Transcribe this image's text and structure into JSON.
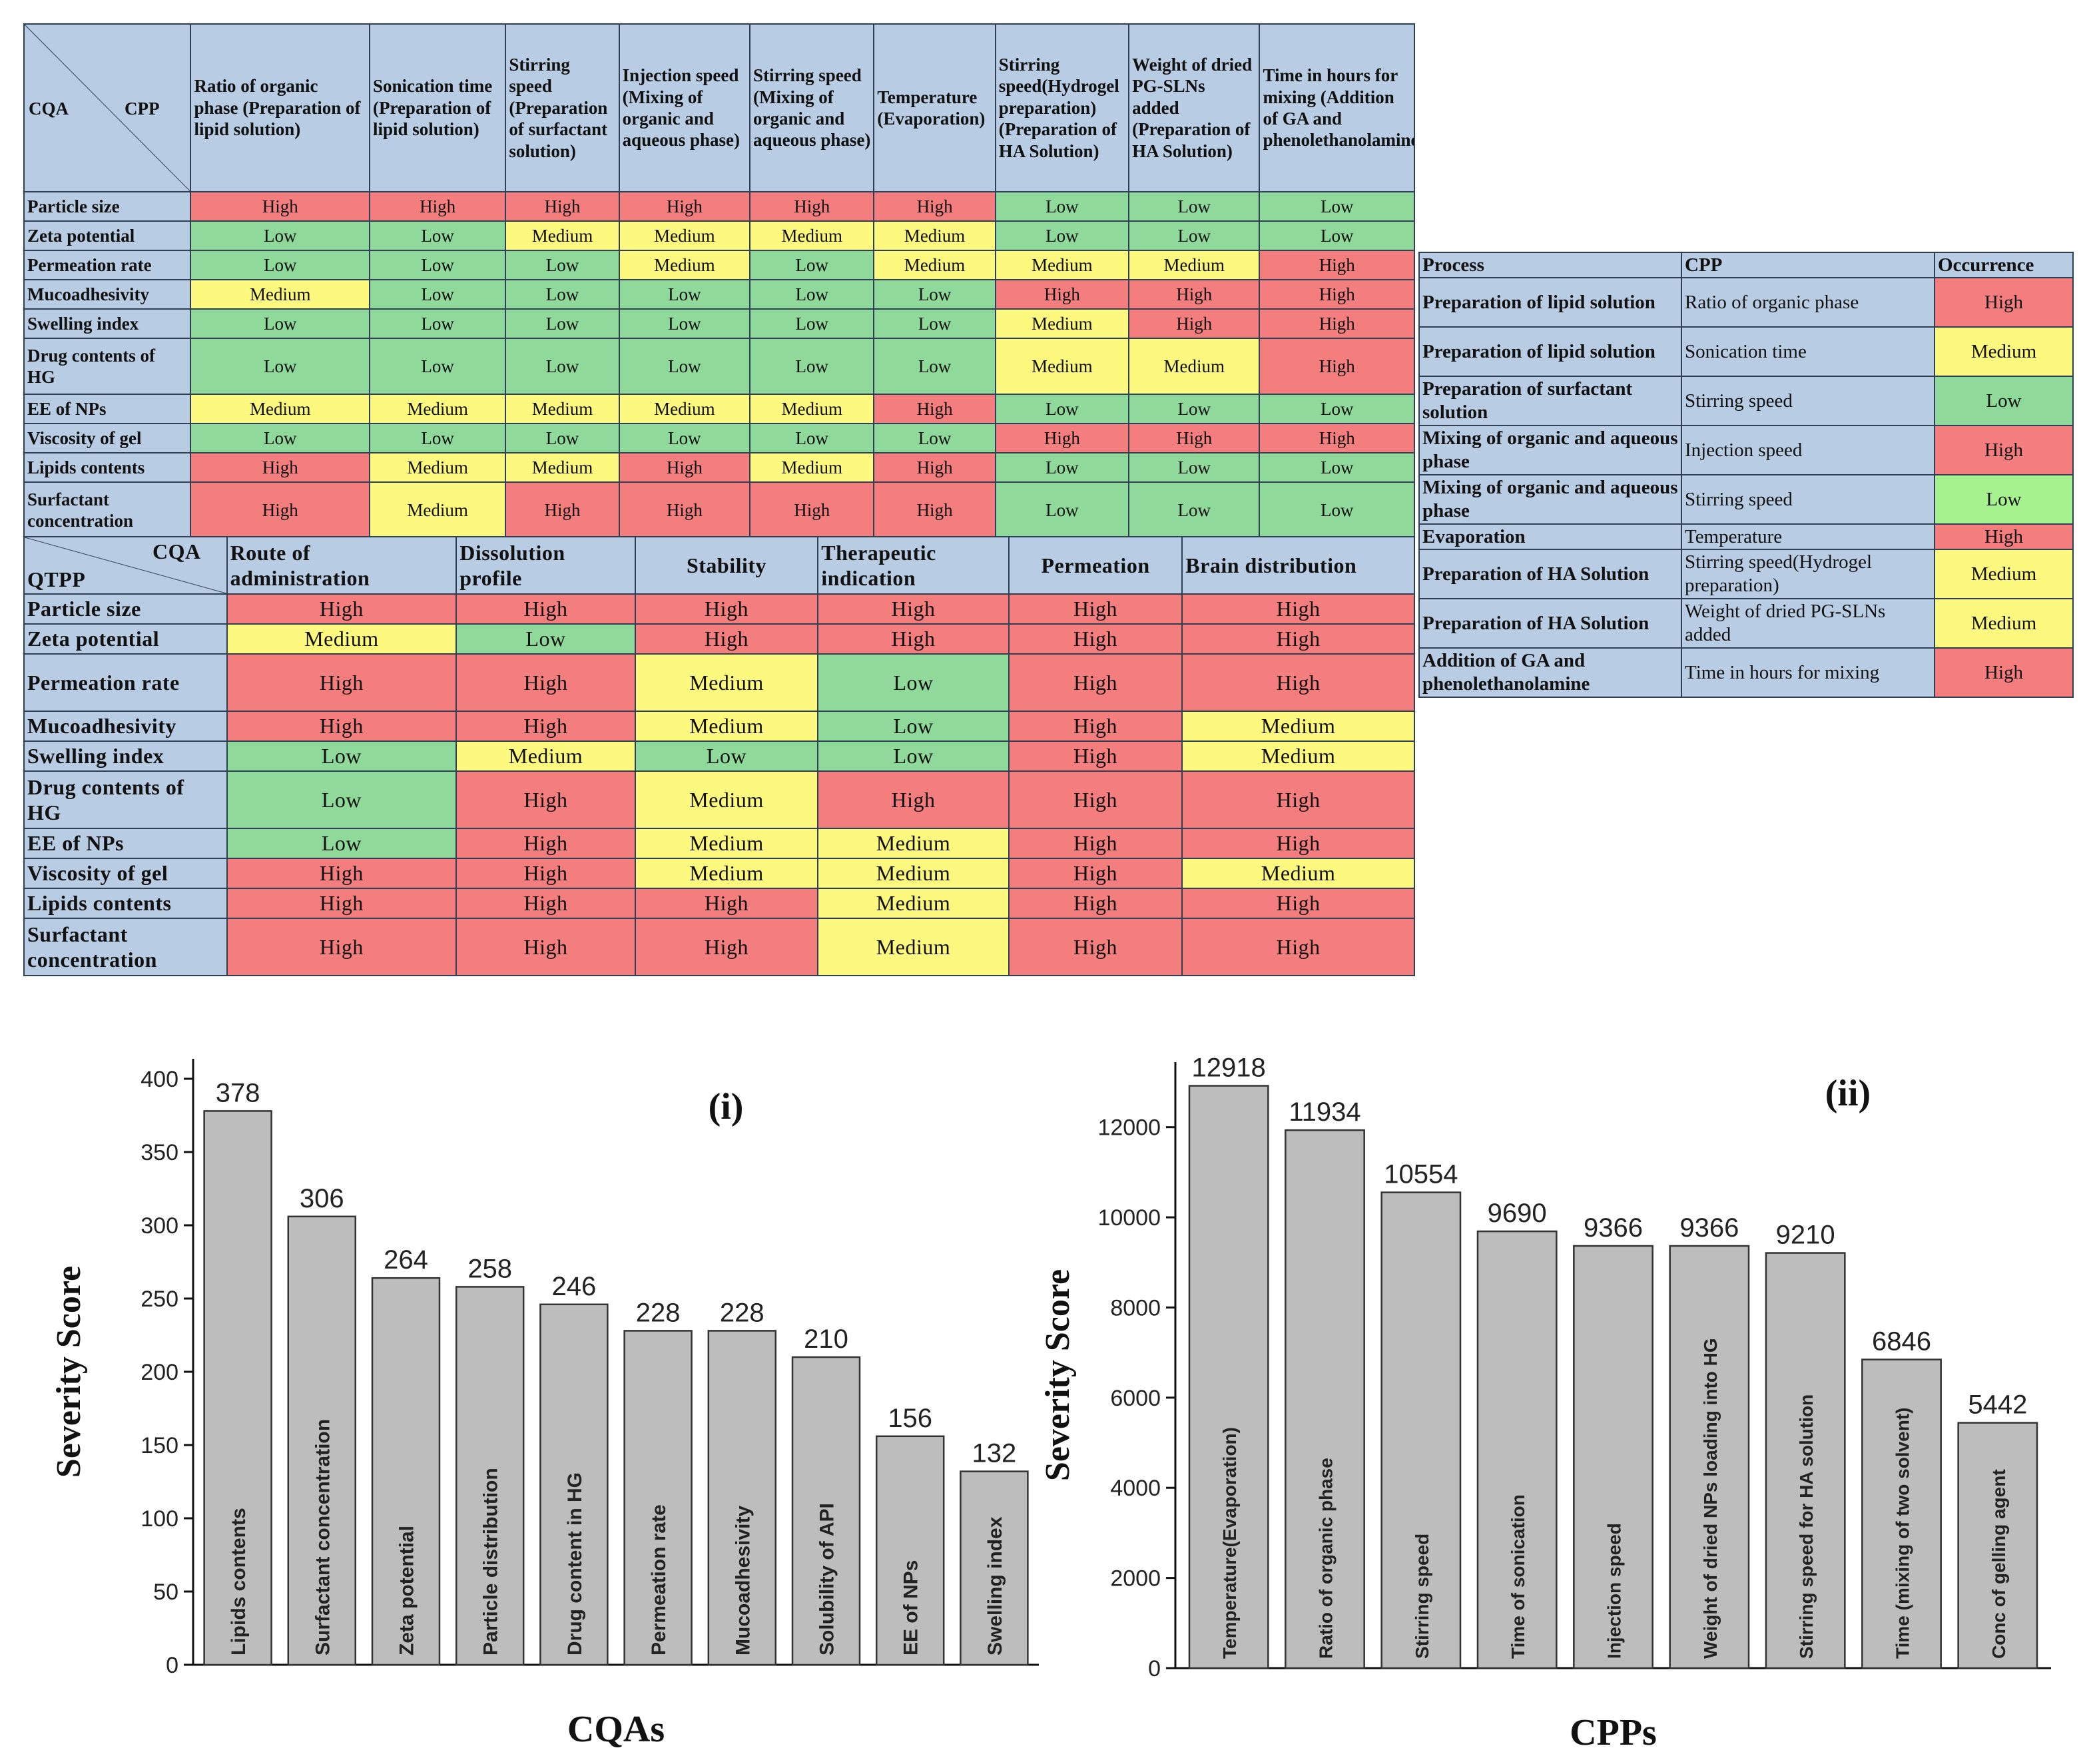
{
  "cqa_cpp_table": {
    "corner_row": "CQA",
    "corner_col": "CPP",
    "columns": [
      "Ratio of organic phase (Preparation of lipid solution)",
      "Sonication time (Preparation of lipid solution)",
      "Stirring speed (Preparation of surfactant solution)",
      "Injection speed (Mixing of organic and aqueous phase)",
      "Stirring speed (Mixing of organic and aqueous phase)",
      "Temperature (Evaporation)",
      "Stirring speed(Hydrogel preparation) (Preparation of HA Solution)",
      "Weight of dried PG-SLNs added (Preparation of HA Solution)",
      "Time in hours for mixing (Addition of GA and phenolethanolamine)"
    ],
    "rows": [
      {
        "label": "Particle size",
        "values": [
          "High",
          "High",
          "High",
          "High",
          "High",
          "High",
          "Low",
          "Low",
          "Low"
        ]
      },
      {
        "label": "Zeta potential",
        "values": [
          "Low",
          "Low",
          "Medium",
          "Medium",
          "Medium",
          "Medium",
          "Low",
          "Low",
          "Low"
        ]
      },
      {
        "label": "Permeation rate",
        "values": [
          "Low",
          "Low",
          "Low",
          "Medium",
          "Low",
          "Medium",
          "Medium",
          "Medium",
          "High"
        ]
      },
      {
        "label": "Mucoadhesivity",
        "values": [
          "Medium",
          "Low",
          "Low",
          "Low",
          "Low",
          "Low",
          "High",
          "High",
          "High"
        ]
      },
      {
        "label": "Swelling index",
        "values": [
          "Low",
          "Low",
          "Low",
          "Low",
          "Low",
          "Low",
          "Medium",
          "High",
          "High"
        ]
      },
      {
        "label": "Drug contents of HG",
        "values": [
          "Low",
          "Low",
          "Low",
          "Low",
          "Low",
          "Low",
          "Medium",
          "Medium",
          "High"
        ]
      },
      {
        "label": "EE of NPs",
        "values": [
          "Medium",
          "Medium",
          "Medium",
          "Medium",
          "Medium",
          "High",
          "Low",
          "Low",
          "Low"
        ]
      },
      {
        "label": "Viscosity of gel",
        "values": [
          "Low",
          "Low",
          "Low",
          "Low",
          "Low",
          "Low",
          "High",
          "High",
          "High"
        ]
      },
      {
        "label": "Lipids contents",
        "values": [
          "High",
          "Medium",
          "Medium",
          "High",
          "Medium",
          "High",
          "Low",
          "Low",
          "Low"
        ]
      },
      {
        "label": "Surfactant concentration",
        "values": [
          "High",
          "Medium",
          "High",
          "High",
          "High",
          "High",
          "Low",
          "Low",
          "Low"
        ]
      }
    ]
  },
  "qtpp_cqa_table": {
    "corner_top": "CQA",
    "corner_bottom": "QTPP",
    "columns": [
      "Route of administration",
      "Dissolution profile",
      "Stability",
      "Therapeutic indication",
      "Permeation",
      "Brain distribution"
    ],
    "rows": [
      {
        "label": "Particle size",
        "values": [
          "High",
          "High",
          "High",
          "High",
          "High",
          "High"
        ]
      },
      {
        "label": "Zeta potential",
        "values": [
          "Medium",
          "Low",
          "High",
          "High",
          "High",
          "High"
        ]
      },
      {
        "label": "Permeation rate",
        "values": [
          "High",
          "High",
          "Medium",
          "Low",
          "High",
          "High"
        ]
      },
      {
        "label": "Mucoadhesivity",
        "values": [
          "High",
          "High",
          "Medium",
          "Low",
          "High",
          "Medium"
        ]
      },
      {
        "label": "Swelling index",
        "values": [
          "Low",
          "Medium",
          "Low",
          "Low",
          "High",
          "Medium"
        ]
      },
      {
        "label": "Drug contents of HG",
        "values": [
          "Low",
          "High",
          "Medium",
          "High",
          "High",
          "High"
        ]
      },
      {
        "label": "EE of NPs",
        "values": [
          "Low",
          "High",
          "Medium",
          "Medium",
          "High",
          "High"
        ]
      },
      {
        "label": "Viscosity of gel",
        "values": [
          "High",
          "High",
          "Medium",
          "Medium",
          "High",
          "Medium"
        ]
      },
      {
        "label": "Lipids contents",
        "values": [
          "High",
          "High",
          "High",
          "Medium",
          "High",
          "High"
        ]
      },
      {
        "label": "Surfactant concentration",
        "values": [
          "High",
          "High",
          "High",
          "Medium",
          "High",
          "High"
        ]
      }
    ]
  },
  "process_table": {
    "headers": [
      "Process",
      "CPP",
      "Occurrence"
    ],
    "rows": [
      {
        "process": "Preparation of lipid solution",
        "cpp": "Ratio of organic phase",
        "occurrence": "High"
      },
      {
        "process": "Preparation of lipid solution",
        "cpp": "Sonication time",
        "occurrence": "Medium"
      },
      {
        "process": "Preparation of surfactant solution",
        "cpp": "Stirring speed",
        "occurrence": "Low"
      },
      {
        "process": "Mixing of organic and aqueous phase",
        "cpp": "Injection speed",
        "occurrence": "High"
      },
      {
        "process": "Mixing of organic and aqueous phase",
        "cpp": "Stirring speed",
        "occurrence": "Low"
      },
      {
        "process": "Evaporation",
        "cpp": "Temperature",
        "occurrence": "High"
      },
      {
        "process": "Preparation of HA Solution",
        "cpp": "Stirring speed(Hydrogel preparation)",
        "occurrence": "Medium"
      },
      {
        "process": "Preparation of HA Solution",
        "cpp": "Weight of dried PG-SLNs added",
        "occurrence": "Medium"
      },
      {
        "process": "Addition of GA and phenolethanolamine",
        "cpp": "Time in hours for mixing",
        "occurrence": "High"
      }
    ]
  },
  "colors": {
    "High": "#f47d7d",
    "Medium": "#fdf87e",
    "Low": "#8fd99a",
    "bar": "#bdbdbd",
    "header": "#b8cce4"
  },
  "chart_data": [
    {
      "type": "bar",
      "panel": "(i)",
      "xlabel": "CQAs",
      "ylabel": "Severity Score",
      "ylim": [
        0,
        400
      ],
      "yticks": [
        0,
        50,
        100,
        150,
        200,
        250,
        300,
        350,
        400
      ],
      "categories": [
        "Lipids contents",
        "Surfactant concentration",
        "Zeta potential",
        "Particle distribution",
        "Drug content in HG",
        "Permeation rate",
        "Mucoadhesivity",
        "Solubility of API",
        "EE of NPs",
        "Swelling index"
      ],
      "values": [
        378,
        306,
        264,
        258,
        246,
        228,
        228,
        210,
        156,
        132
      ]
    },
    {
      "type": "bar",
      "panel": "(ii)",
      "xlabel": "CPPs",
      "ylabel": "Severity Score",
      "ylim": [
        0,
        13000
      ],
      "yticks": [
        0,
        2000,
        4000,
        6000,
        8000,
        10000,
        12000
      ],
      "categories": [
        "Temperature(Evaporation)",
        "Ratio of organic phase",
        "Stirring speed",
        "Time of sonication",
        "Injection speed",
        "Weight of dried NPs loading into HG",
        "Stirring speed for HA solution",
        "Time (mixing of two solvent)",
        "Conc of gelling agent"
      ],
      "values": [
        12918,
        11934,
        10554,
        9690,
        9366,
        9366,
        9210,
        6846,
        5442
      ]
    }
  ]
}
